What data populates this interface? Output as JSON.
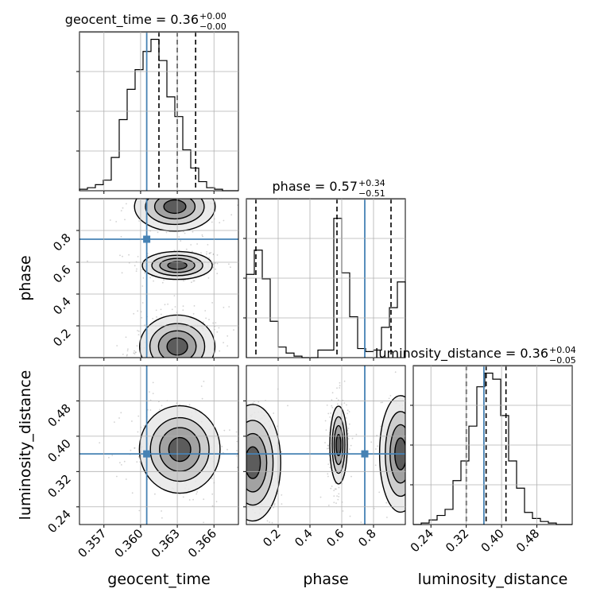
{
  "chart_data": {
    "type": "corner",
    "truth_color": "#4682b4",
    "params": [
      {
        "name": "geocent_time",
        "truth": 0.3605,
        "quantiles": [
          0.3615,
          0.363,
          0.3645
        ],
        "range": [
          0.355,
          0.368
        ],
        "ticks": [
          0.357,
          0.36,
          0.363,
          0.366
        ],
        "tick_labels": [
          "0.357",
          "0.360",
          "0.363",
          "0.366"
        ],
        "title": "geocent_time = 0.36",
        "title_sup": "+0.00",
        "title_sub": "−0.00",
        "xlabel": "geocent_time",
        "hist": [
          0.01,
          0.02,
          0.04,
          0.07,
          0.22,
          0.47,
          0.67,
          0.8,
          0.92,
          1.0,
          0.86,
          0.62,
          0.49,
          0.27,
          0.15,
          0.06,
          0.02,
          0.01,
          0.0,
          0.0
        ]
      },
      {
        "name": "phase",
        "truth": 0.745,
        "quantiles": [
          0.06,
          0.57,
          0.91
        ],
        "range": [
          0.0,
          1.0
        ],
        "ticks": [
          0.2,
          0.4,
          0.6,
          0.8
        ],
        "tick_labels": [
          "0.2",
          "0.4",
          "0.6",
          "0.8"
        ],
        "title": "phase = 0.57",
        "title_sup": "+0.34",
        "title_sub": "−0.51",
        "xlabel": "phase",
        "ylabel": "phase",
        "hist": [
          0.55,
          0.71,
          0.52,
          0.24,
          0.07,
          0.03,
          0.01,
          0.0,
          0.0,
          0.05,
          0.05,
          0.92,
          0.56,
          0.27,
          0.06,
          0.04,
          0.05,
          0.2,
          0.33,
          0.5
        ]
      },
      {
        "name": "luminosity_distance",
        "truth": 0.36,
        "quantiles": [
          0.32,
          0.365,
          0.41
        ],
        "range": [
          0.2,
          0.56
        ],
        "ticks": [
          0.24,
          0.32,
          0.4,
          0.48
        ],
        "tick_labels": [
          "0.24",
          "0.32",
          "0.40",
          "0.48"
        ],
        "title": "luminosity_distance = 0.36",
        "title_sup": "+0.04",
        "title_sub": "−0.05",
        "xlabel": "luminosity_distance",
        "ylabel": "luminosity_distance",
        "hist": [
          0.0,
          0.01,
          0.03,
          0.06,
          0.1,
          0.29,
          0.42,
          0.65,
          0.91,
          1.0,
          0.96,
          0.72,
          0.42,
          0.24,
          0.08,
          0.04,
          0.02,
          0.01,
          0.0,
          0.0
        ]
      }
    ],
    "blobs": {
      "phase_vs_geocent_time": [
        {
          "x": 0.363,
          "y": 0.58,
          "sx": 0.0013,
          "sy": 0.04,
          "w": 1.0
        },
        {
          "x": 0.363,
          "y": 0.07,
          "sx": 0.0014,
          "sy": 0.09,
          "w": 1.2
        },
        {
          "x": 0.3628,
          "y": 0.95,
          "sx": 0.0015,
          "sy": 0.07,
          "w": 0.7
        }
      ],
      "luminosity_distance_vs_geocent_time": [
        {
          "x": 0.3632,
          "y": 0.37,
          "sx": 0.0015,
          "sy": 0.045,
          "w": 1.0
        }
      ],
      "luminosity_distance_vs_phase": [
        {
          "x": 0.04,
          "y": 0.34,
          "sx": 0.08,
          "sy": 0.06,
          "w": 0.8
        },
        {
          "x": 0.58,
          "y": 0.38,
          "sx": 0.025,
          "sy": 0.04,
          "w": 1.0
        },
        {
          "x": 0.97,
          "y": 0.36,
          "sx": 0.06,
          "sy": 0.06,
          "w": 0.6
        }
      ]
    }
  }
}
